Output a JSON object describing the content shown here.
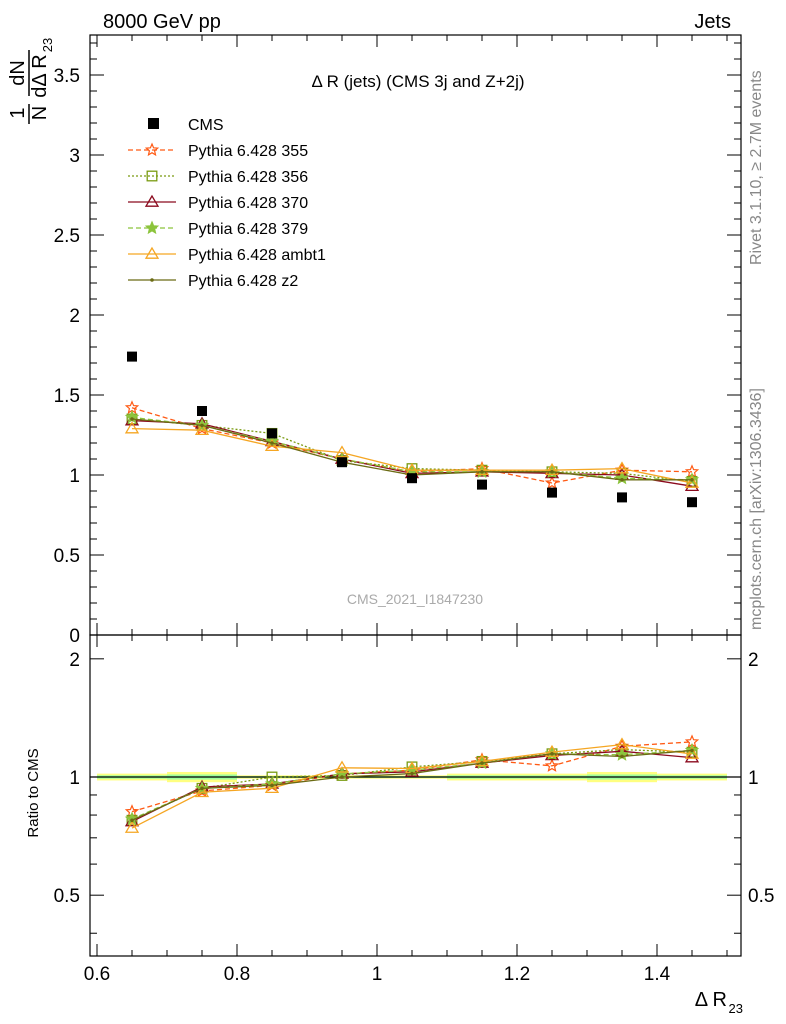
{
  "header": {
    "left": "8000 GeV pp",
    "right": "Jets"
  },
  "side": {
    "rivet": "Rivet 3.1.10, ≥ 2.7M events",
    "mcplots": "mcplots.cern.ch [arXiv:1306.3436]"
  },
  "chart_data": {
    "type": "line",
    "title": "Δ R (jets) (CMS 3j and Z+2j)",
    "watermark": "CMS_2021_I1847230",
    "xlabel": "Δ R",
    "xlabel_sub": "23",
    "ylabel_parts": {
      "one": "1",
      "dN": "dN",
      "N": "N",
      "dDelta": "dΔ R",
      "sub": "23"
    },
    "ratio_ylabel": "Ratio to CMS",
    "xlim": [
      0.59,
      1.52
    ],
    "ylim": [
      0,
      3.75
    ],
    "ratio_ylim": [
      0.35,
      2.3
    ],
    "x_ticks": [
      0.6,
      0.8,
      1.0,
      1.2,
      1.4
    ],
    "x_tick_labels": [
      "0.6",
      "0.8",
      "1",
      "1.2",
      "1.4"
    ],
    "y_ticks": [
      0.5,
      1,
      1.5,
      2,
      2.5,
      3,
      3.5
    ],
    "y_tick_labels": [
      "0.5",
      "1",
      "1.5",
      "2",
      "2.5",
      "3",
      "3.5"
    ],
    "y_zero_label": "0",
    "ratio_y_ticks": [
      0.5,
      1,
      2
    ],
    "ratio_y_tick_labels": [
      "0.5",
      "1",
      "2"
    ],
    "x": [
      0.65,
      0.75,
      0.85,
      0.95,
      1.05,
      1.15,
      1.25,
      1.35,
      1.45
    ],
    "bin_edges": [
      0.6,
      0.7,
      0.8,
      0.9,
      1.0,
      1.1,
      1.2,
      1.3,
      1.4,
      1.5
    ],
    "data": {
      "name": "CMS",
      "values": [
        1.74,
        1.4,
        1.26,
        1.08,
        0.98,
        0.94,
        0.89,
        0.86,
        0.83
      ],
      "band_lo": [
        0.98,
        0.97,
        0.99,
        0.99,
        0.99,
        0.98,
        0.98,
        0.97,
        0.98
      ],
      "band_hi": [
        1.02,
        1.03,
        1.01,
        1.01,
        1.01,
        1.02,
        1.02,
        1.03,
        1.02
      ]
    },
    "series": [
      {
        "name": "Pythia 6.428 355",
        "color": "#ff5a14",
        "dash": "5,3",
        "marker": "star-open",
        "values": [
          1.42,
          1.29,
          1.2,
          1.1,
          1.02,
          1.04,
          0.95,
          1.03,
          1.02
        ]
      },
      {
        "name": "Pythia 6.428 356",
        "color": "#7a9b12",
        "dash": "2,2",
        "marker": "square-open",
        "values": [
          1.35,
          1.31,
          1.26,
          1.09,
          1.04,
          1.03,
          1.02,
          1.01,
          0.96
        ]
      },
      {
        "name": "Pythia 6.428 370",
        "color": "#8b0a1e",
        "dash": "",
        "marker": "triangle-open",
        "values": [
          1.34,
          1.32,
          1.21,
          1.1,
          1.01,
          1.02,
          1.01,
          1.0,
          0.93
        ]
      },
      {
        "name": "Pythia 6.428 379",
        "color": "#8cc43c",
        "dash": "5,3",
        "marker": "star-filled",
        "values": [
          1.36,
          1.31,
          1.21,
          1.1,
          1.02,
          1.02,
          1.02,
          0.98,
          0.97
        ]
      },
      {
        "name": "Pythia 6.428 ambt1",
        "color": "#f5a623",
        "dash": "",
        "marker": "triangle-open",
        "values": [
          1.29,
          1.28,
          1.18,
          1.14,
          1.03,
          1.03,
          1.03,
          1.04,
          0.95
        ]
      },
      {
        "name": "Pythia 6.428 z2",
        "color": "#6b6b14",
        "dash": "",
        "marker": "dot",
        "values": [
          1.35,
          1.31,
          1.2,
          1.08,
          1.0,
          1.02,
          1.02,
          0.97,
          0.97
        ]
      }
    ],
    "legend_placement": "top-left",
    "grid": false
  }
}
